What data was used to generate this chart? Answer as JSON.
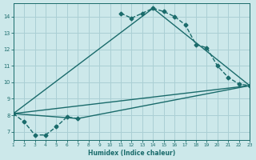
{
  "xlabel": "Humidex (Indice chaleur)",
  "bg_color": "#cce8ea",
  "grid_color": "#aacfd4",
  "line_color": "#1a6b6b",
  "xlim": [
    1,
    23
  ],
  "ylim": [
    6.5,
    14.8
  ],
  "xticks": [
    1,
    2,
    3,
    4,
    5,
    6,
    7,
    8,
    9,
    10,
    11,
    12,
    13,
    14,
    15,
    16,
    17,
    18,
    19,
    20,
    21,
    22,
    23
  ],
  "yticks": [
    7,
    8,
    9,
    10,
    11,
    12,
    13,
    14
  ],
  "segment1_x": [
    1,
    2,
    3,
    4,
    5,
    6,
    7
  ],
  "segment1_y": [
    8.1,
    7.6,
    6.8,
    6.8,
    7.3,
    7.9,
    7.8
  ],
  "segment2_x": [
    11,
    12,
    13,
    14,
    15,
    16,
    17,
    18,
    19,
    20,
    21,
    22,
    23
  ],
  "segment2_y": [
    14.2,
    13.9,
    14.2,
    14.5,
    14.3,
    14.0,
    13.5,
    12.3,
    12.1,
    11.0,
    10.3,
    9.9,
    9.8
  ],
  "line1_x": [
    1,
    23
  ],
  "line1_y": [
    8.1,
    9.8
  ],
  "line2_x": [
    1,
    7,
    23
  ],
  "line2_y": [
    8.1,
    7.8,
    9.8
  ],
  "line3_x": [
    1,
    14,
    23
  ],
  "line3_y": [
    8.1,
    14.5,
    9.8
  ]
}
